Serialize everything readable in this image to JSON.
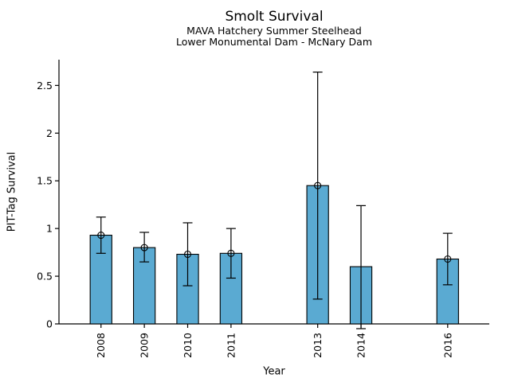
{
  "chart_data": {
    "type": "bar",
    "title": "Smolt Survival",
    "subtitle1": "MAVA Hatchery Summer Steelhead",
    "subtitle2": "Lower Monumental Dam - McNary Dam",
    "xlabel": "Year",
    "ylabel": "PIT-Tag Survival",
    "categories": [
      "2008",
      "2009",
      "2010",
      "2011",
      "2013",
      "2014",
      "2016"
    ],
    "x_numeric": [
      2008,
      2009,
      2010,
      2011,
      2013,
      2014,
      2016
    ],
    "values": [
      0.93,
      0.8,
      0.73,
      0.74,
      1.45,
      0.6,
      0.68
    ],
    "error_low": [
      0.74,
      0.65,
      0.4,
      0.48,
      0.26,
      -0.05,
      0.41
    ],
    "error_high": [
      1.12,
      0.96,
      1.06,
      1.0,
      2.64,
      1.24,
      0.95
    ],
    "markers": [
      true,
      true,
      true,
      true,
      true,
      false,
      true
    ],
    "y_ticks": [
      {
        "value": 0,
        "label": "0"
      },
      {
        "value": 0.5,
        "label": "0.5"
      },
      {
        "value": 1,
        "label": "1"
      },
      {
        "value": 1.5,
        "label": "1.5"
      },
      {
        "value": 2,
        "label": "2"
      },
      {
        "value": 2.5,
        "label": "2.5"
      }
    ],
    "xlim": [
      2007.03,
      2016.96
    ],
    "ylim": [
      0,
      2.77
    ],
    "grid": false,
    "legend": null,
    "bar_width_years": 0.5,
    "colors": {
      "bar_fill": "#5aaad2",
      "bar_edge": "#000000",
      "error_bar": "#000000",
      "marker_edge": "#000000",
      "axis": "#000000",
      "text": "#000000"
    }
  }
}
